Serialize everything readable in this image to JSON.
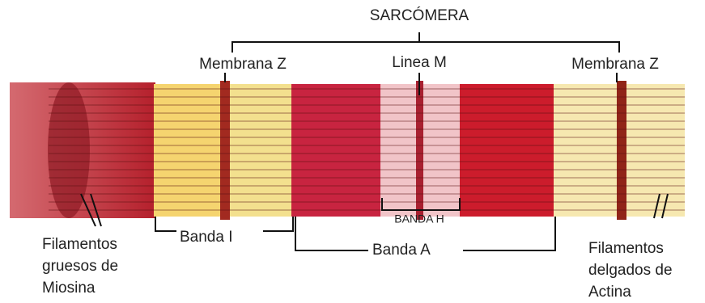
{
  "title": "SARCÓMERA",
  "labels": {
    "z_left": "Membrana Z",
    "m_line": "Linea M",
    "z_right": "Membrana Z",
    "h_band": "BANDA H",
    "i_band": "Banda I",
    "a_band": "Banda A"
  },
  "thick_filaments": [
    "Filamentos",
    "gruesos de",
    "Miosina"
  ],
  "thin_filaments": [
    "Filamentos",
    "delgados de",
    "Actina"
  ]
}
